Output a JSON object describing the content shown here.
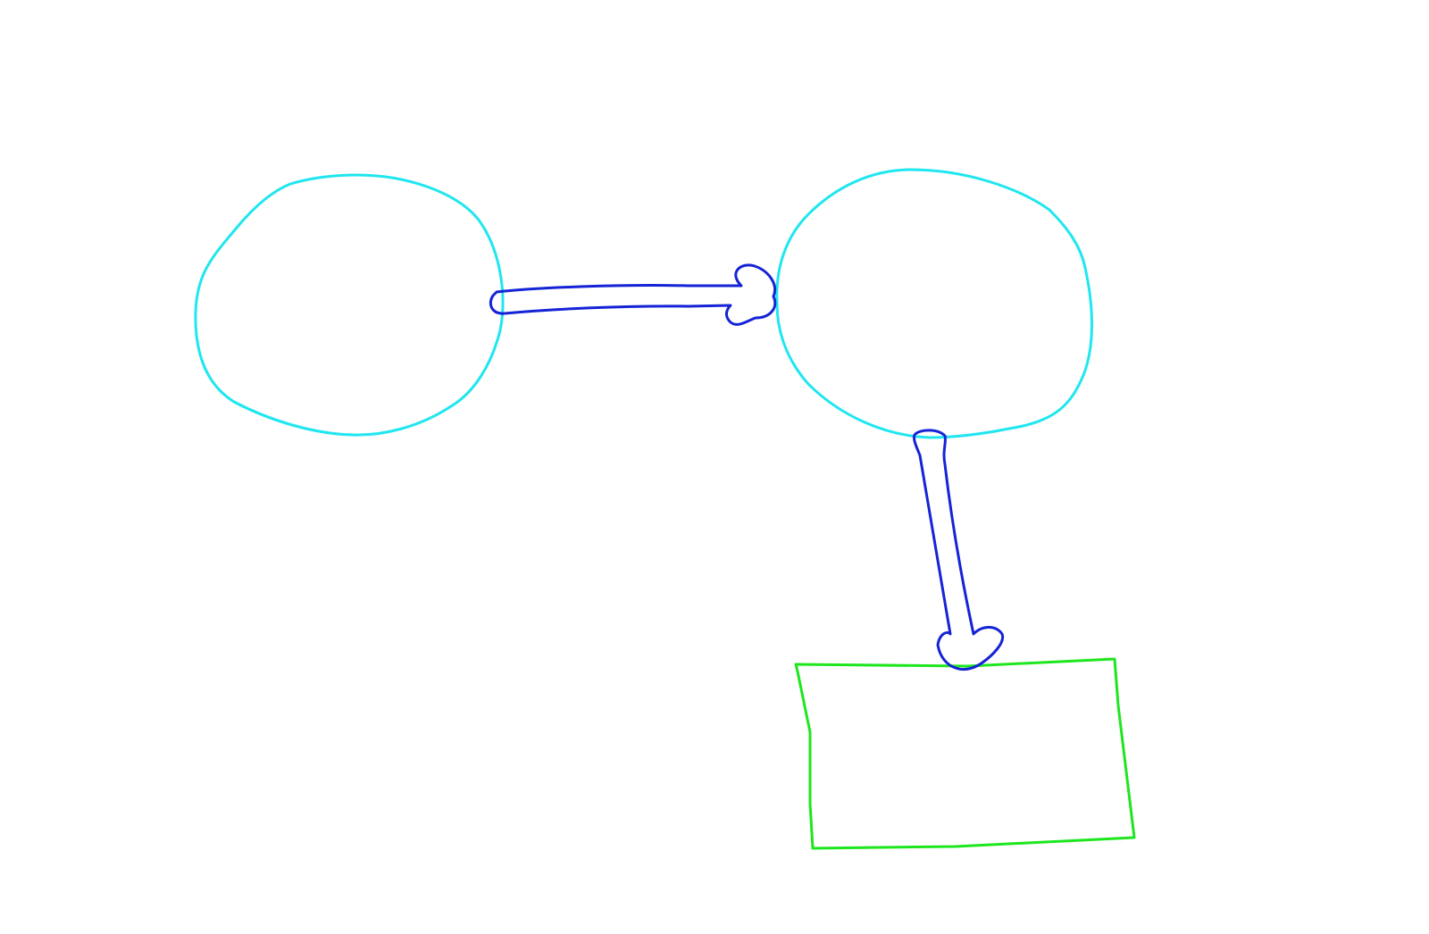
{
  "diagram": {
    "colors": {
      "background": "#ffffff",
      "ellipse_stroke": "#1fe6f0",
      "arrow_stroke": "#1523d6",
      "rectangle_stroke": "#1ee61e"
    },
    "shapes": [
      {
        "id": "ellipse-left",
        "kind": "ellipse",
        "color_key": "ellipse_stroke"
      },
      {
        "id": "ellipse-right",
        "kind": "ellipse",
        "color_key": "ellipse_stroke"
      },
      {
        "id": "rectangle-bottom",
        "kind": "rectangle",
        "color_key": "rectangle_stroke"
      },
      {
        "id": "arrow-horizontal",
        "kind": "arrow",
        "from": "ellipse-left",
        "to": "ellipse-right",
        "color_key": "arrow_stroke"
      },
      {
        "id": "arrow-vertical",
        "kind": "arrow",
        "from": "ellipse-right",
        "to": "rectangle-bottom",
        "color_key": "arrow_stroke"
      }
    ]
  }
}
